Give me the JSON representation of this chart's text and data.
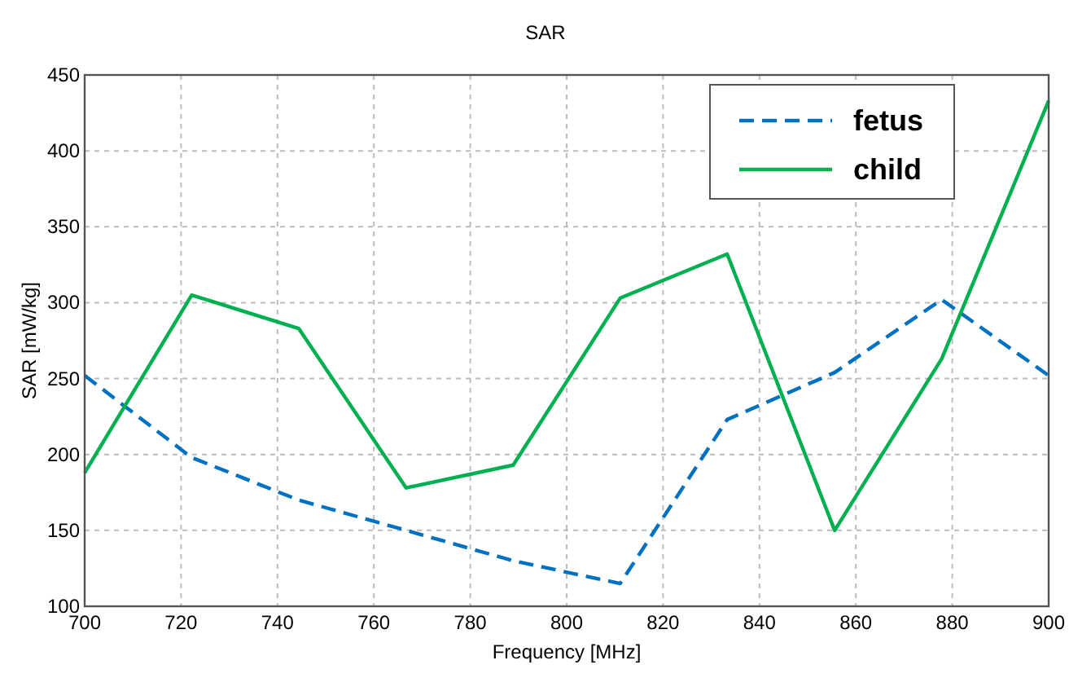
{
  "chart_data": {
    "type": "line",
    "title": "SAR",
    "xlabel": "Frequency [MHz]",
    "ylabel": "SAR [mW/kg]",
    "x": [
      700,
      722.2,
      744.4,
      766.7,
      788.9,
      811.1,
      833.3,
      855.6,
      877.8,
      900
    ],
    "series": [
      {
        "name": "fetus",
        "color": "#0070c0",
        "line_style": "dashed",
        "values": [
          252,
          198,
          170,
          150,
          130,
          115,
          223,
          254,
          302,
          252
        ]
      },
      {
        "name": "child",
        "color": "#00b050",
        "line_style": "solid",
        "values": [
          188,
          305,
          283,
          178,
          193,
          303,
          332,
          150,
          263,
          433
        ]
      }
    ],
    "xlim": [
      700,
      900
    ],
    "xticks": [
      700,
      720,
      740,
      760,
      780,
      800,
      820,
      840,
      860,
      880,
      900
    ],
    "ylim": [
      100,
      450
    ],
    "yticks": [
      100,
      150,
      200,
      250,
      300,
      350,
      400,
      450
    ],
    "grid": true,
    "legend": "top right",
    "marker": "none"
  }
}
